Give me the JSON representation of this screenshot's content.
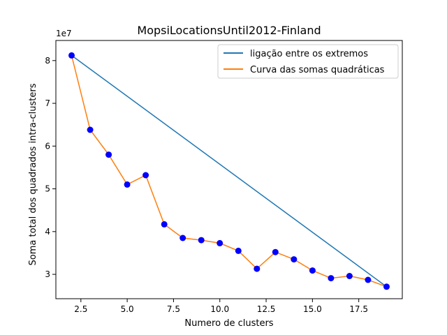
{
  "chart_data": {
    "type": "line",
    "title": "MopsiLocationsUntil2012-Finland",
    "xlabel": "Numero de clusters",
    "ylabel": "Soma total dos quadrados intra-clusters",
    "y_offset_label": "1e7",
    "xlim": [
      1.15,
      19.85
    ],
    "ylim": [
      24300000.0,
      84700000.0
    ],
    "x_ticks": [
      2.5,
      5.0,
      7.5,
      10.0,
      12.5,
      15.0,
      17.5
    ],
    "x_tick_labels": [
      "2.5",
      "5.0",
      "7.5",
      "10.0",
      "12.5",
      "15.0",
      "17.5"
    ],
    "y_ticks": [
      30000000.0,
      40000000.0,
      50000000.0,
      60000000.0,
      70000000.0,
      80000000.0
    ],
    "y_tick_labels": [
      "3",
      "4",
      "5",
      "6",
      "7",
      "8"
    ],
    "grid": false,
    "legend_position": "top-right",
    "series": [
      {
        "name": "ligação entre os extremos",
        "color": "#1f77b4",
        "x": [
          2,
          19
        ],
        "y": [
          81200000,
          27100000
        ]
      },
      {
        "name": "Curva das somas quadráticas",
        "color": "#ff7f0e",
        "marker_color": "#0000ff",
        "x": [
          2,
          3,
          4,
          5,
          6,
          7,
          8,
          9,
          10,
          11,
          12,
          13,
          14,
          15,
          16,
          17,
          18,
          19
        ],
        "y": [
          81200000,
          63800000,
          58000000,
          51000000,
          53200000,
          41700000,
          38500000,
          38000000,
          37300000,
          35500000,
          31300000,
          35200000,
          33500000,
          30900000,
          29100000,
          29600000,
          28700000,
          27100000
        ]
      }
    ]
  }
}
